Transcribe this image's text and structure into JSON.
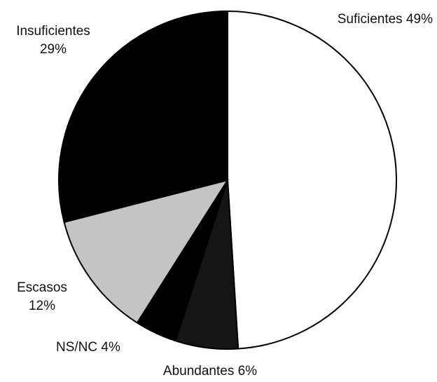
{
  "chart_data": {
    "type": "pie",
    "categories": [
      "Suficientes",
      "Abundantes",
      "NS/NC",
      "Escasos",
      "Insuficientes"
    ],
    "values": [
      49,
      6,
      4,
      12,
      29
    ],
    "value_labels": [
      "49%",
      "6%",
      "4%",
      "12%",
      "29%"
    ],
    "colors": [
      "#ffffff",
      "#151515",
      "#000000",
      "#c4c4c4",
      "#000000"
    ]
  }
}
